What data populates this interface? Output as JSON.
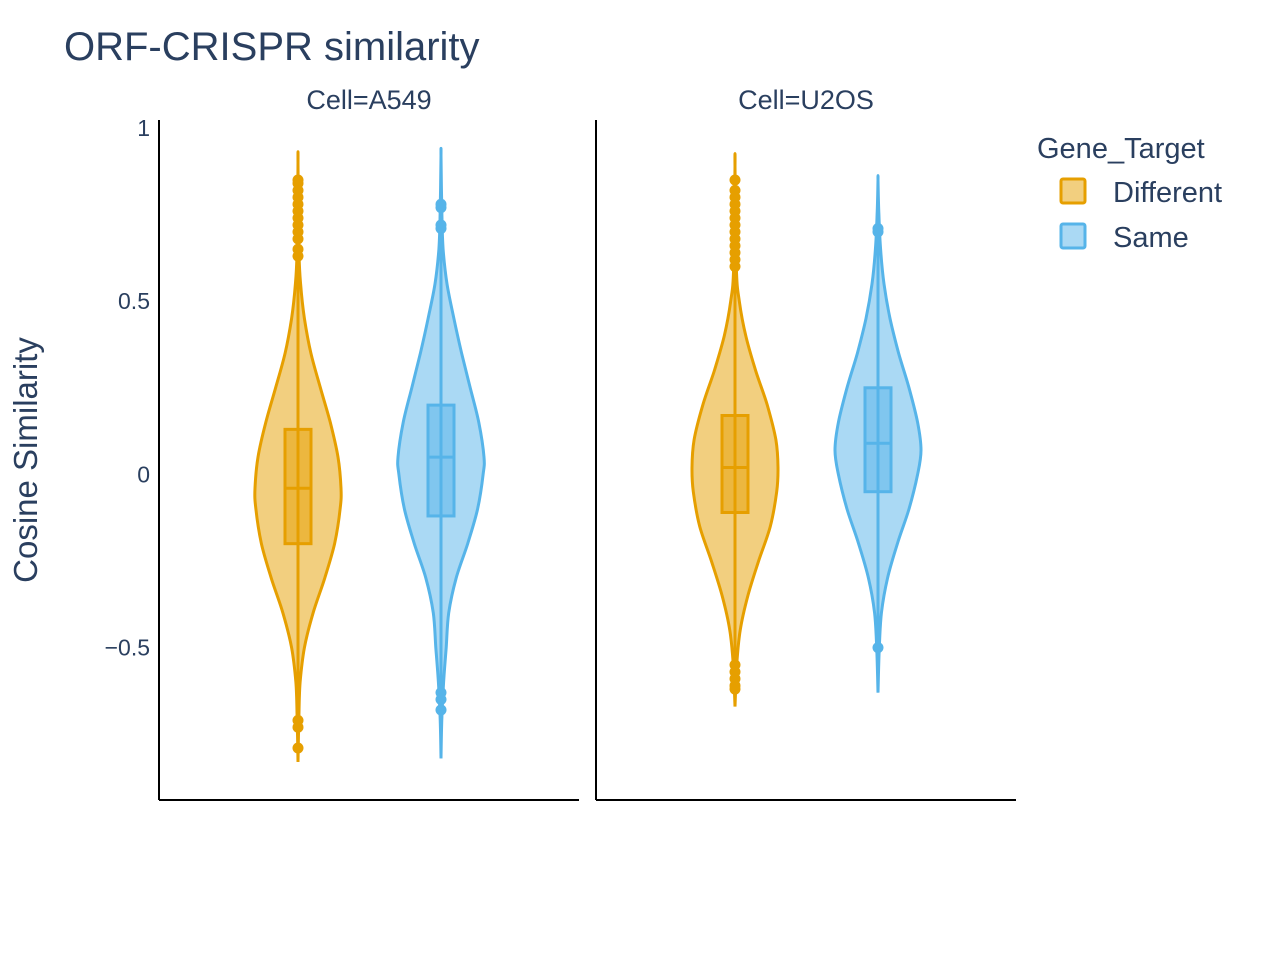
{
  "chart_data": {
    "type": "violin",
    "title": "ORF-CRISPR similarity",
    "ylabel": "Cosine Similarity",
    "ylim": [
      -0.94,
      1.0
    ],
    "yticks": [
      {
        "value": 1,
        "label": "1"
      },
      {
        "value": 0.5,
        "label": "0.5"
      },
      {
        "value": 0,
        "label": "0"
      },
      {
        "value": -0.5,
        "label": "−0.5"
      }
    ],
    "legend": {
      "title": "Gene_Target",
      "position": "top-right",
      "items": [
        {
          "name": "Different",
          "color": "#E69F00"
        },
        {
          "name": "Same",
          "color": "#56B4E9"
        }
      ]
    },
    "facets": [
      {
        "label": "Cell=A549",
        "violins": [
          {
            "group": "Different",
            "color": "#E69F00",
            "min": -0.83,
            "max": 0.9,
            "q1": -0.2,
            "median": -0.04,
            "q3": 0.13,
            "whisker_low": -0.67,
            "whisker_high": 0.63,
            "density": [
              {
                "y": -0.83,
                "w": 0.0
              },
              {
                "y": -0.7,
                "w": 0.02
              },
              {
                "y": -0.6,
                "w": 0.05
              },
              {
                "y": -0.5,
                "w": 0.15
              },
              {
                "y": -0.4,
                "w": 0.35
              },
              {
                "y": -0.3,
                "w": 0.62
              },
              {
                "y": -0.2,
                "w": 0.85
              },
              {
                "y": -0.1,
                "w": 0.98
              },
              {
                "y": -0.04,
                "w": 1.0
              },
              {
                "y": 0.05,
                "w": 0.93
              },
              {
                "y": 0.15,
                "w": 0.75
              },
              {
                "y": 0.25,
                "w": 0.52
              },
              {
                "y": 0.35,
                "w": 0.3
              },
              {
                "y": 0.45,
                "w": 0.15
              },
              {
                "y": 0.55,
                "w": 0.06
              },
              {
                "y": 0.65,
                "w": 0.02
              },
              {
                "y": 0.9,
                "w": 0.0
              }
            ],
            "outliers": [
              0.63,
              0.65,
              0.68,
              0.7,
              0.72,
              0.74,
              0.76,
              0.78,
              0.8,
              0.82,
              0.84,
              0.85,
              -0.71,
              -0.73,
              -0.79
            ]
          },
          {
            "group": "Same",
            "color": "#56B4E9",
            "min": -0.82,
            "max": 0.92,
            "q1": -0.12,
            "median": 0.05,
            "q3": 0.2,
            "whisker_low": -0.55,
            "whisker_high": 0.7,
            "density": [
              {
                "y": -0.82,
                "w": 0.0
              },
              {
                "y": -0.7,
                "w": 0.02
              },
              {
                "y": -0.6,
                "w": 0.06
              },
              {
                "y": -0.5,
                "w": 0.12
              },
              {
                "y": -0.4,
                "w": 0.18
              },
              {
                "y": -0.3,
                "w": 0.35
              },
              {
                "y": -0.2,
                "w": 0.62
              },
              {
                "y": -0.1,
                "w": 0.85
              },
              {
                "y": 0.0,
                "w": 0.98
              },
              {
                "y": 0.05,
                "w": 1.0
              },
              {
                "y": 0.15,
                "w": 0.88
              },
              {
                "y": 0.25,
                "w": 0.68
              },
              {
                "y": 0.35,
                "w": 0.48
              },
              {
                "y": 0.45,
                "w": 0.3
              },
              {
                "y": 0.55,
                "w": 0.14
              },
              {
                "y": 0.65,
                "w": 0.05
              },
              {
                "y": 0.75,
                "w": 0.02
              },
              {
                "y": 0.92,
                "w": 0.0
              }
            ],
            "outliers": [
              0.71,
              0.72,
              0.77,
              0.78,
              -0.63,
              -0.65,
              -0.68
            ]
          }
        ]
      },
      {
        "label": "Cell=U2OS",
        "violins": [
          {
            "group": "Different",
            "color": "#E69F00",
            "min": -0.67,
            "max": 0.89,
            "q1": -0.11,
            "median": 0.02,
            "q3": 0.17,
            "whisker_low": -0.54,
            "whisker_high": 0.58,
            "density": [
              {
                "y": -0.67,
                "w": 0.0
              },
              {
                "y": -0.55,
                "w": 0.04
              },
              {
                "y": -0.45,
                "w": 0.12
              },
              {
                "y": -0.35,
                "w": 0.3
              },
              {
                "y": -0.25,
                "w": 0.55
              },
              {
                "y": -0.15,
                "w": 0.82
              },
              {
                "y": -0.05,
                "w": 0.97
              },
              {
                "y": 0.02,
                "w": 1.0
              },
              {
                "y": 0.1,
                "w": 0.95
              },
              {
                "y": 0.2,
                "w": 0.75
              },
              {
                "y": 0.3,
                "w": 0.48
              },
              {
                "y": 0.4,
                "w": 0.25
              },
              {
                "y": 0.5,
                "w": 0.1
              },
              {
                "y": 0.6,
                "w": 0.03
              },
              {
                "y": 0.89,
                "w": 0.0
              }
            ],
            "outliers": [
              0.6,
              0.62,
              0.64,
              0.66,
              0.68,
              0.7,
              0.72,
              0.74,
              0.76,
              0.78,
              0.8,
              0.82,
              0.85,
              -0.55,
              -0.57,
              -0.59,
              -0.61,
              -0.62
            ]
          },
          {
            "group": "Same",
            "color": "#56B4E9",
            "min": -0.63,
            "max": 0.85,
            "q1": -0.05,
            "median": 0.09,
            "q3": 0.25,
            "whisker_low": -0.5,
            "whisker_high": 0.7,
            "density": [
              {
                "y": -0.63,
                "w": 0.0
              },
              {
                "y": -0.5,
                "w": 0.03
              },
              {
                "y": -0.4,
                "w": 0.08
              },
              {
                "y": -0.3,
                "w": 0.22
              },
              {
                "y": -0.2,
                "w": 0.45
              },
              {
                "y": -0.1,
                "w": 0.72
              },
              {
                "y": 0.0,
                "w": 0.92
              },
              {
                "y": 0.07,
                "w": 1.0
              },
              {
                "y": 0.15,
                "w": 0.92
              },
              {
                "y": 0.25,
                "w": 0.72
              },
              {
                "y": 0.35,
                "w": 0.48
              },
              {
                "y": 0.45,
                "w": 0.28
              },
              {
                "y": 0.55,
                "w": 0.14
              },
              {
                "y": 0.65,
                "w": 0.06
              },
              {
                "y": 0.75,
                "w": 0.02
              },
              {
                "y": 0.85,
                "w": 0.0
              }
            ],
            "outliers": [
              0.7,
              0.71,
              -0.5
            ]
          }
        ]
      }
    ]
  }
}
